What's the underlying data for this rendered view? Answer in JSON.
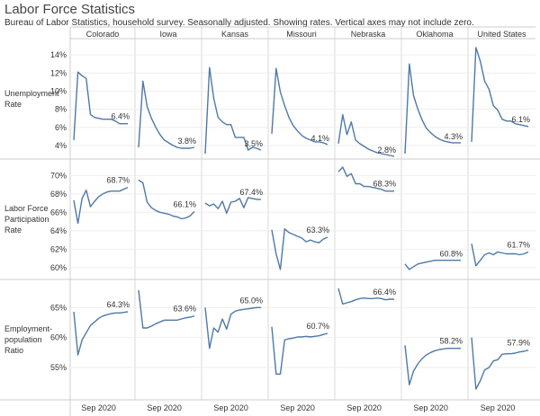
{
  "page": {
    "title": "Labor Force Statistics",
    "subtitle": "Bureau of Labor Statistics, household survey. Seasonally adjusted. Showing rates. Vertical axes may not include zero."
  },
  "colors": {
    "line": "#4e79a7",
    "grid": "#d9d9d9",
    "text": "#333333"
  },
  "chart_data": {
    "type": "line",
    "columns": [
      "Colorado",
      "Iowa",
      "Kansas",
      "Missouri",
      "Nebraska",
      "Oklahoma",
      "United States"
    ],
    "x_tick_label": "Sep 2020",
    "x_tick_index": 6,
    "panels": [
      {
        "name": "Unemployment Rate",
        "row_label": [
          "Unemployment",
          "Rate"
        ],
        "ylim": [
          3.3,
          15.0
        ],
        "yticks": [
          4,
          6,
          8,
          10,
          12,
          14
        ],
        "ytick_labels": [
          "4%",
          "6%",
          "8%",
          "10%",
          "12%",
          "14%"
        ],
        "series": [
          {
            "values": [
              4.6,
              12.1,
              11.7,
              11.4,
              7.4,
              7.1,
              7.0,
              6.9,
              6.9,
              6.9,
              6.7,
              6.4,
              6.4,
              6.4
            ],
            "end_label": "6.4%"
          },
          {
            "values": [
              3.8,
              11.1,
              8.3,
              7.0,
              6.0,
              5.2,
              4.6,
              4.3,
              4.0,
              3.8,
              3.7,
              3.7,
              3.7,
              3.8
            ],
            "end_label": "3.8%"
          },
          {
            "values": [
              3.1,
              12.6,
              9.2,
              7.1,
              6.6,
              6.3,
              6.3,
              4.9,
              4.9,
              4.9,
              3.5,
              3.8,
              3.7,
              3.5
            ],
            "end_label": "3.5%"
          },
          {
            "values": [
              5.3,
              12.5,
              9.9,
              8.4,
              7.1,
              6.2,
              5.6,
              5.1,
              4.8,
              4.6,
              4.4,
              4.4,
              4.3,
              4.1
            ],
            "end_label": "4.1%"
          },
          {
            "values": [
              4.2,
              7.4,
              5.2,
              6.6,
              4.6,
              4.2,
              3.9,
              3.6,
              3.4,
              3.2,
              3.1,
              3.0,
              2.9,
              2.8
            ],
            "end_label": "2.8%"
          },
          {
            "values": [
              3.1,
              13.0,
              9.5,
              8.0,
              6.8,
              5.9,
              5.4,
              5.0,
              4.7,
              4.5,
              4.4,
              4.3,
              4.3,
              4.3
            ],
            "end_label": "4.3%"
          },
          {
            "values": [
              4.4,
              14.8,
              13.3,
              11.1,
              10.2,
              8.4,
              7.9,
              6.9,
              6.7,
              6.7,
              6.4,
              6.3,
              6.2,
              6.1
            ],
            "end_label": "6.1%"
          }
        ]
      },
      {
        "name": "Labor Force Participation Rate",
        "row_label": [
          "Labor Force",
          "Participation",
          "Rate"
        ],
        "ylim": [
          59.5,
          71.0
        ],
        "yticks": [
          60,
          62,
          64,
          66,
          68,
          70
        ],
        "ytick_labels": [
          "60%",
          "62%",
          "64%",
          "66%",
          "68%",
          "70%"
        ],
        "series": [
          {
            "values": [
              67.3,
              64.8,
              67.5,
              68.4,
              66.6,
              67.2,
              67.7,
              68.0,
              68.2,
              68.3,
              68.3,
              68.3,
              68.5,
              68.7
            ],
            "end_label": "68.7%"
          },
          {
            "values": [
              69.5,
              69.2,
              67.1,
              66.5,
              66.2,
              66.0,
              65.9,
              65.8,
              65.6,
              65.5,
              65.3,
              65.4,
              65.6,
              66.1
            ],
            "end_label": "66.1%"
          },
          {
            "values": [
              67.0,
              66.7,
              66.9,
              66.4,
              67.2,
              65.9,
              67.1,
              67.2,
              67.5,
              66.5,
              67.6,
              67.5,
              67.4,
              67.4
            ],
            "end_label": "67.4%"
          },
          {
            "values": [
              64.1,
              61.5,
              59.8,
              64.2,
              63.8,
              63.6,
              63.4,
              63.2,
              62.8,
              63.0,
              62.8,
              62.7,
              63.1,
              63.3
            ],
            "end_label": "63.3%"
          },
          {
            "values": [
              70.4,
              70.9,
              69.9,
              70.2,
              69.1,
              69.1,
              68.8,
              68.8,
              68.7,
              68.6,
              68.5,
              68.3,
              68.3,
              68.3
            ],
            "end_label": "68.3%"
          },
          {
            "values": [
              60.4,
              59.8,
              60.1,
              60.4,
              60.5,
              60.6,
              60.7,
              60.8,
              60.8,
              60.8,
              60.8,
              60.8,
              60.8,
              60.8
            ],
            "end_label": "60.8%"
          },
          {
            "values": [
              62.6,
              60.2,
              60.8,
              61.4,
              61.6,
              61.4,
              61.7,
              61.6,
              61.5,
              61.5,
              61.5,
              61.4,
              61.5,
              61.7
            ],
            "end_label": "61.7%"
          }
        ]
      },
      {
        "name": "Employment-population Ratio",
        "row_label": [
          "Employment-",
          "population",
          "Ratio"
        ],
        "ylim": [
          50.8,
          68.5
        ],
        "yticks": [
          55,
          60,
          65
        ],
        "ytick_labels": [
          "55%",
          "60%",
          "65%"
        ],
        "series": [
          {
            "values": [
              64.3,
              57.1,
              59.6,
              60.8,
              62.0,
              62.6,
              63.2,
              63.6,
              63.8,
              64.0,
              64.1,
              64.1,
              64.2,
              64.3
            ],
            "end_label": "64.3%"
          },
          {
            "values": [
              67.9,
              61.6,
              61.6,
              61.9,
              62.3,
              62.6,
              62.9,
              62.9,
              62.9,
              62.9,
              63.1,
              63.3,
              63.4,
              63.6
            ],
            "end_label": "63.6%"
          },
          {
            "values": [
              65.0,
              58.2,
              61.6,
              60.9,
              63.1,
              61.4,
              63.9,
              64.4,
              64.6,
              64.7,
              64.8,
              64.9,
              65.0,
              65.0
            ],
            "end_label": "65.0%"
          },
          {
            "values": [
              61.8,
              53.9,
              53.9,
              59.6,
              59.8,
              59.9,
              60.1,
              60.1,
              60.2,
              60.1,
              60.2,
              60.3,
              60.5,
              60.7
            ],
            "end_label": "60.7%"
          },
          {
            "values": [
              68.2,
              65.6,
              65.8,
              66.0,
              66.3,
              66.5,
              66.6,
              66.5,
              66.5,
              66.6,
              66.5,
              66.3,
              66.4,
              66.4
            ],
            "end_label": "66.4%"
          },
          {
            "values": [
              58.7,
              52.1,
              54.4,
              55.6,
              56.5,
              57.1,
              57.5,
              57.8,
              58.0,
              58.1,
              58.2,
              58.2,
              58.2,
              58.2
            ],
            "end_label": "58.2%"
          },
          {
            "values": [
              60.0,
              51.4,
              52.8,
              54.6,
              55.0,
              56.1,
              56.3,
              57.2,
              57.3,
              57.3,
              57.4,
              57.6,
              57.7,
              57.9
            ],
            "end_label": "57.9%"
          }
        ]
      }
    ]
  }
}
